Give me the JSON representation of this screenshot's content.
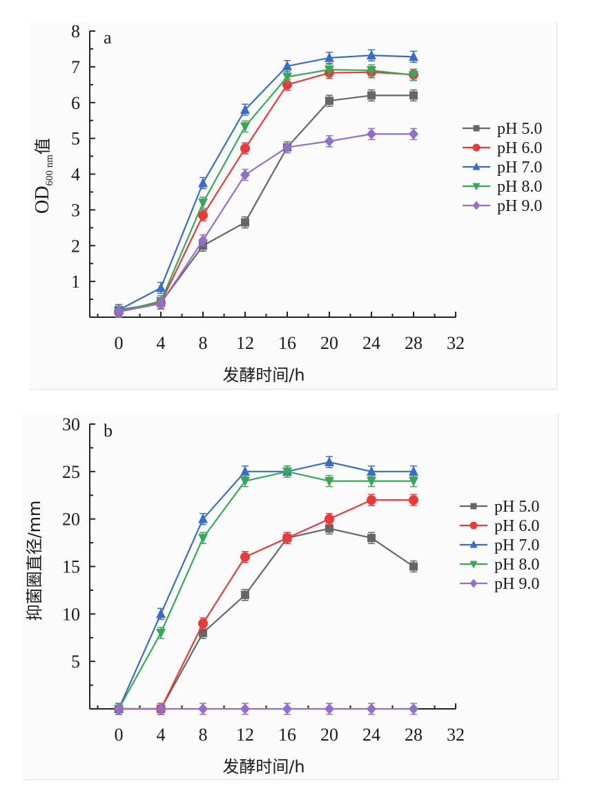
{
  "chart_data": [
    {
      "type": "line",
      "panel_label": "a",
      "title": "",
      "xlabel": "发酵时间/h",
      "ylabel": "OD600 nm值",
      "ylabel_parts": {
        "main": "OD",
        "sub": "600 nm",
        "suffix": "值"
      },
      "xlim": [
        0,
        32
      ],
      "ylim": [
        0,
        8
      ],
      "x_ticks": [
        0,
        4,
        8,
        12,
        16,
        20,
        24,
        28,
        32
      ],
      "y_ticks": [
        1,
        2,
        3,
        4,
        5,
        6,
        7,
        8
      ],
      "x": [
        0,
        4,
        8,
        12,
        16,
        20,
        24,
        28
      ],
      "grid": false,
      "legend_position": "right",
      "error_bars": true,
      "series": [
        {
          "name": "pH 5.0",
          "color": "#666666",
          "marker": "square",
          "values": [
            0.2,
            0.4,
            2.0,
            2.65,
            4.75,
            6.05,
            6.2,
            6.2
          ]
        },
        {
          "name": "pH 6.0",
          "color": "#e8393b",
          "marker": "circle",
          "values": [
            0.15,
            0.4,
            2.85,
            4.72,
            6.5,
            6.83,
            6.85,
            6.78
          ]
        },
        {
          "name": "pH 7.0",
          "color": "#3a6cc6",
          "marker": "triangle-up",
          "values": [
            0.2,
            0.82,
            3.75,
            5.8,
            7.02,
            7.25,
            7.32,
            7.28
          ]
        },
        {
          "name": "pH 8.0",
          "color": "#3aa65a",
          "marker": "triangle-down",
          "values": [
            0.15,
            0.45,
            3.2,
            5.33,
            6.72,
            6.92,
            6.9,
            6.77
          ]
        },
        {
          "name": "pH 9.0",
          "color": "#9270c8",
          "marker": "diamond",
          "values": [
            0.15,
            0.38,
            2.15,
            3.98,
            4.75,
            4.92,
            5.12,
            5.12
          ]
        }
      ]
    },
    {
      "type": "line",
      "panel_label": "b",
      "title": "",
      "xlabel": "发酵时间/h",
      "ylabel": "抑菌圈直径/mm",
      "xlim": [
        0,
        32
      ],
      "ylim": [
        0,
        30
      ],
      "x_ticks": [
        0,
        4,
        8,
        12,
        16,
        20,
        24,
        28,
        32
      ],
      "y_ticks": [
        5,
        10,
        15,
        20,
        25,
        30
      ],
      "x": [
        0,
        4,
        8,
        12,
        16,
        20,
        24,
        28
      ],
      "grid": false,
      "legend_position": "right",
      "error_bars": true,
      "series": [
        {
          "name": "pH 5.0",
          "color": "#666666",
          "marker": "square",
          "values": [
            0,
            0,
            8,
            12,
            18,
            19,
            18,
            15
          ]
        },
        {
          "name": "pH 6.0",
          "color": "#e8393b",
          "marker": "circle",
          "values": [
            0,
            0,
            9,
            16,
            18,
            20,
            22,
            22
          ]
        },
        {
          "name": "pH 7.0",
          "color": "#3a6cc6",
          "marker": "triangle-up",
          "values": [
            0,
            10,
            20,
            25,
            25,
            26,
            25,
            25
          ]
        },
        {
          "name": "pH 8.0",
          "color": "#3aa65a",
          "marker": "triangle-down",
          "values": [
            0,
            8,
            18,
            24,
            25,
            24,
            24,
            24
          ]
        },
        {
          "name": "pH 9.0",
          "color": "#9270c8",
          "marker": "diamond",
          "values": [
            0,
            0,
            0,
            0,
            0,
            0,
            0,
            0
          ]
        }
      ]
    }
  ]
}
